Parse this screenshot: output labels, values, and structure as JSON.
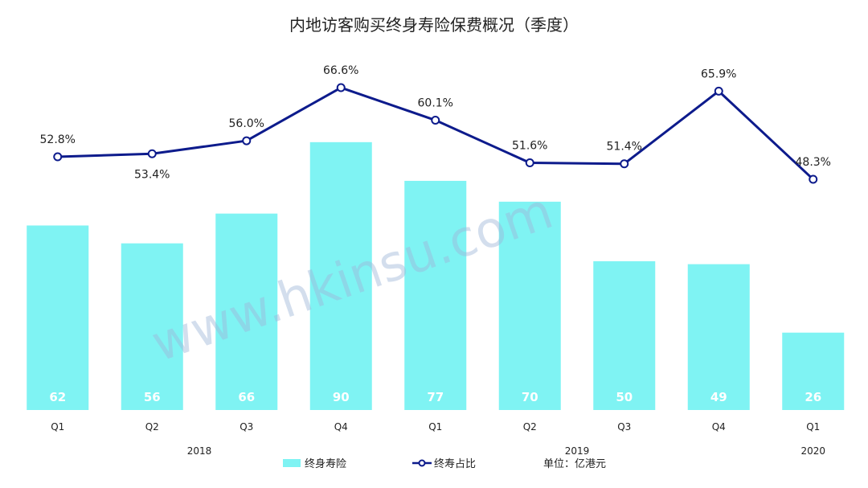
{
  "chart_data": {
    "type": "bar",
    "title": "内地访客购买终身寿险保费概况（季度）",
    "categories": [
      "Q1",
      "Q2",
      "Q3",
      "Q4",
      "Q1",
      "Q2",
      "Q3",
      "Q4",
      "Q1"
    ],
    "years": [
      {
        "label": "2018",
        "span": [
          0,
          3
        ]
      },
      {
        "label": "2019",
        "span": [
          4,
          7
        ]
      },
      {
        "label": "2020",
        "span": [
          8,
          8
        ]
      }
    ],
    "series": [
      {
        "name": "终身寿险",
        "type": "bar",
        "values": [
          62,
          56,
          66,
          90,
          77,
          70,
          50,
          49,
          26
        ]
      },
      {
        "name": "终寿占比",
        "type": "line",
        "values": [
          52.8,
          53.4,
          56.0,
          66.6,
          60.1,
          51.6,
          51.4,
          65.9,
          48.3
        ],
        "labels": [
          "52.8%",
          "53.4%",
          "56.0%",
          "66.6%",
          "60.1%",
          "51.6%",
          "51.4%",
          "65.9%",
          "48.3%"
        ]
      }
    ],
    "unit_note": "单位：亿港元",
    "watermark": "www.hkinsu.com",
    "colors": {
      "bar": "#7ff3f3",
      "line": "#0d1b8c",
      "marker_fill": "#ffffff"
    },
    "bar_ylim": [
      0,
      100
    ],
    "line_ylim": [
      0,
      100
    ],
    "legend_position": "bottom"
  }
}
